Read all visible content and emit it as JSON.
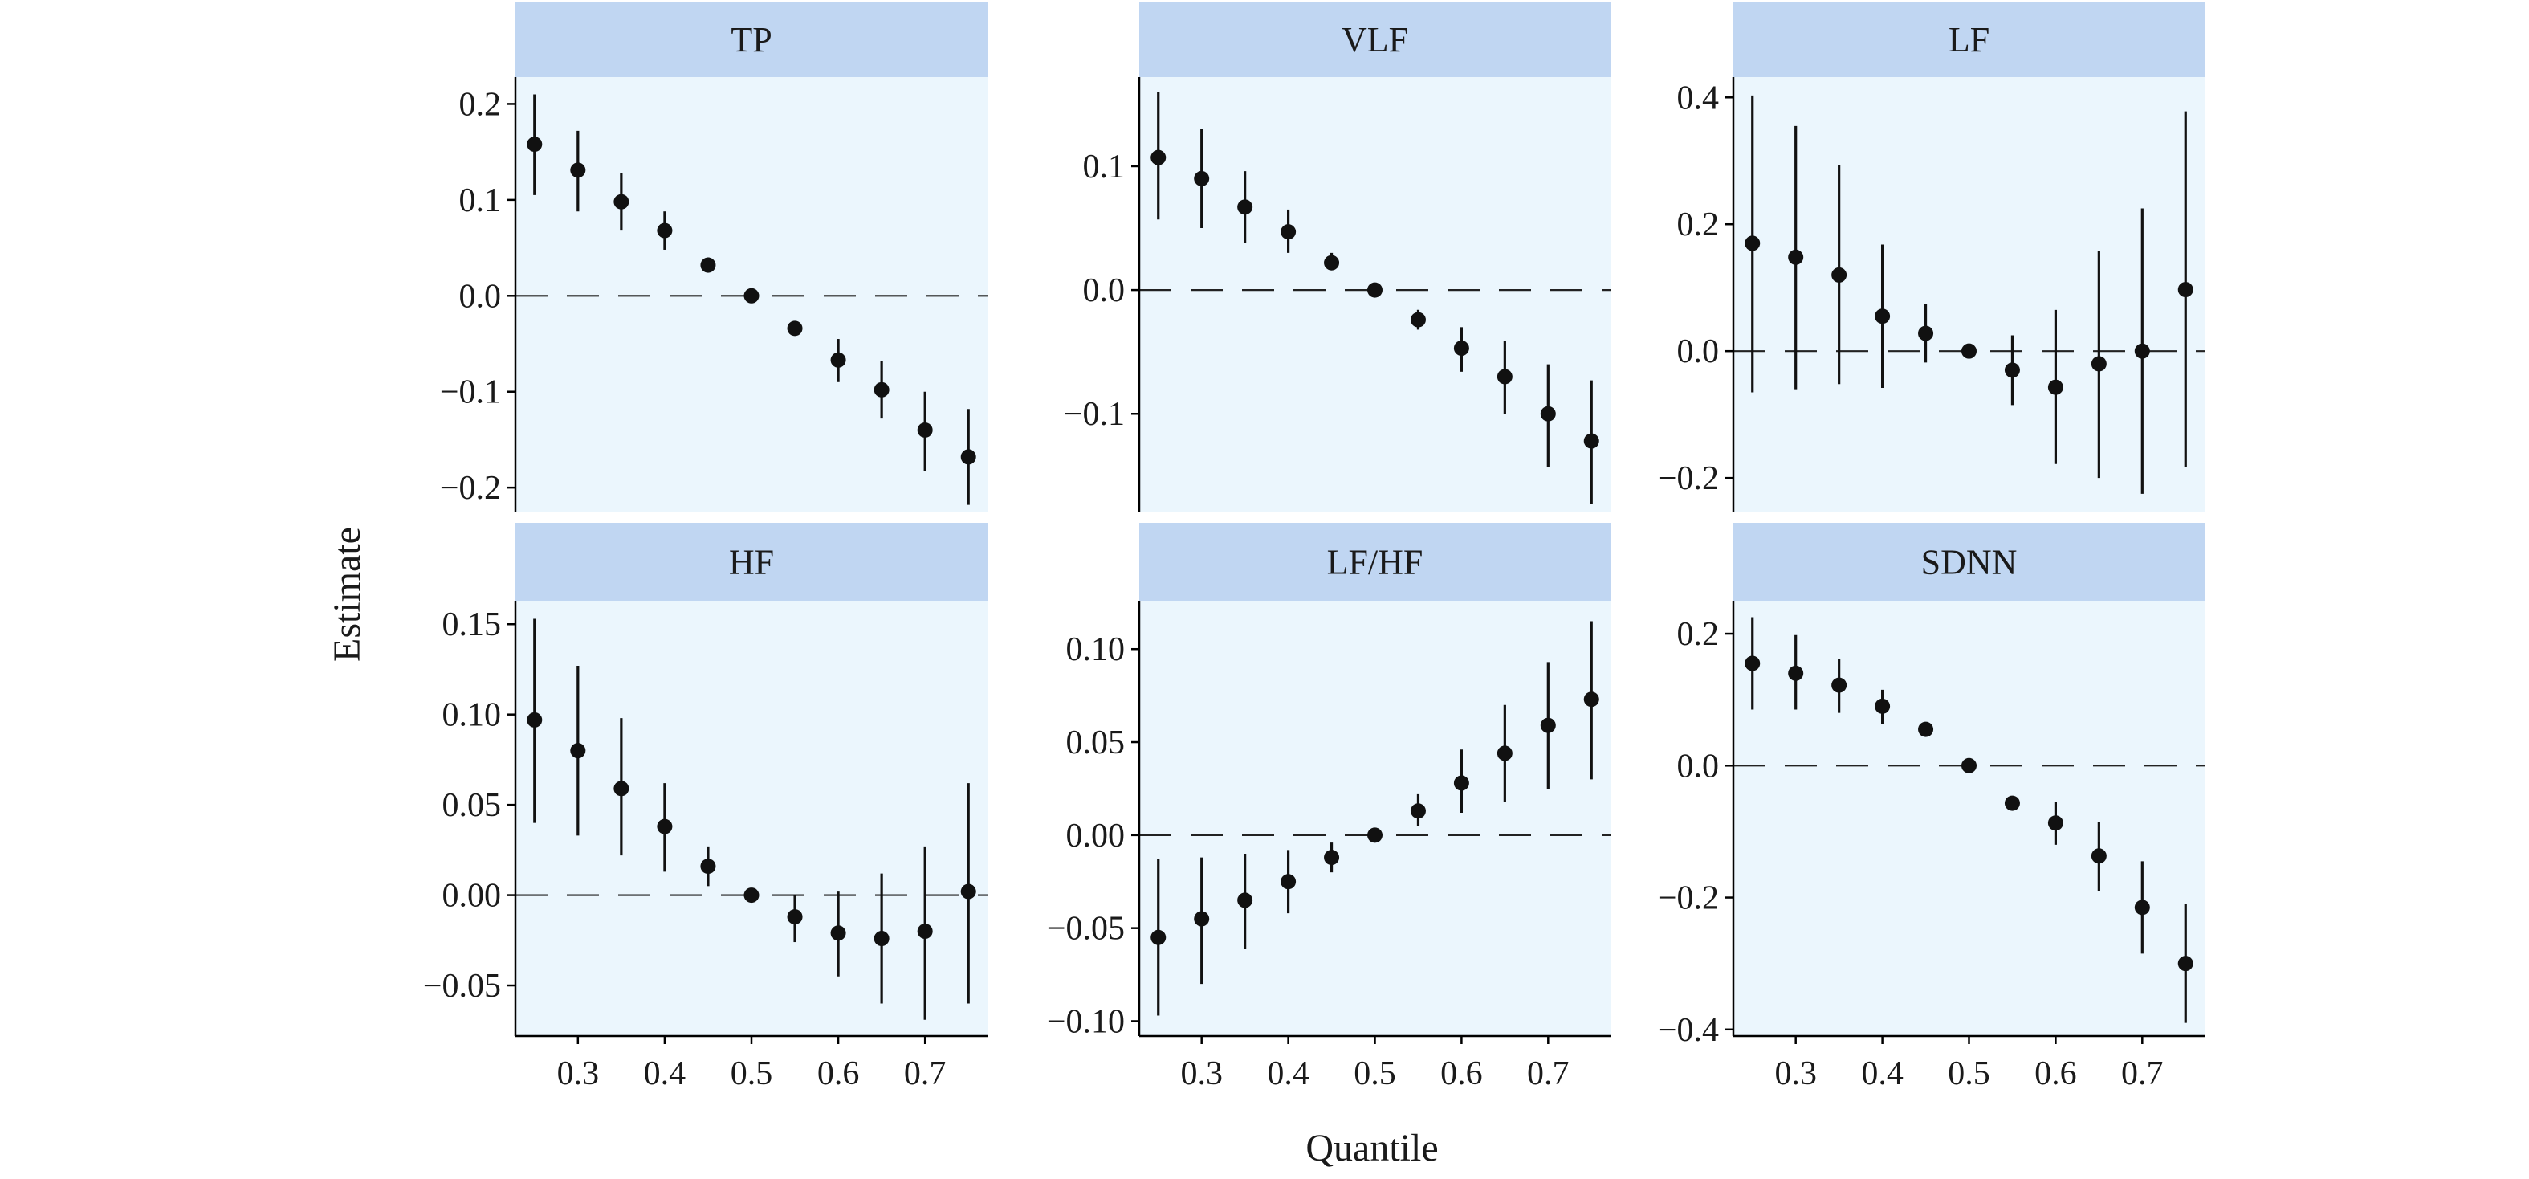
{
  "colors": {
    "panel_bg": "#ebf6fd",
    "strip_bg": "#c0d6f2",
    "point": "#111111",
    "reference_line": "#222222"
  },
  "figure": {
    "ylabel": "Estimate",
    "xlabel": "Quantile"
  },
  "chart_data": [
    {
      "type": "scatter",
      "title": "TP",
      "x": [
        0.25,
        0.3,
        0.35,
        0.4,
        0.45,
        0.5,
        0.55,
        0.6,
        0.65,
        0.7,
        0.75
      ],
      "values": [
        0.158,
        0.131,
        0.098,
        0.068,
        0.032,
        0.0,
        -0.034,
        -0.067,
        -0.098,
        -0.14,
        -0.168
      ],
      "lower": [
        0.105,
        0.088,
        0.068,
        0.048,
        0.025,
        0.0,
        -0.04,
        -0.09,
        -0.128,
        -0.183,
        -0.218
      ],
      "upper": [
        0.21,
        0.172,
        0.128,
        0.088,
        0.04,
        0.0,
        -0.028,
        -0.045,
        -0.068,
        -0.1,
        -0.118
      ],
      "ylim": [
        -0.225,
        0.228
      ],
      "yticks": [
        0.2,
        0.1,
        0.0,
        -0.1,
        -0.2
      ],
      "ytick_labels": [
        "0.2",
        "0.1",
        "0.0",
        "−0.1",
        "−0.2"
      ],
      "xticks": [
        0.3,
        0.4,
        0.5,
        0.6,
        0.7
      ],
      "xtick_labels": [
        "0.3",
        "0.4",
        "0.5",
        "0.6",
        "0.7"
      ],
      "reference_line": 0
    },
    {
      "type": "scatter",
      "title": "VLF",
      "x": [
        0.25,
        0.3,
        0.35,
        0.4,
        0.45,
        0.5,
        0.55,
        0.6,
        0.65,
        0.7,
        0.75
      ],
      "values": [
        0.107,
        0.09,
        0.067,
        0.047,
        0.022,
        0.0,
        -0.024,
        -0.047,
        -0.07,
        -0.1,
        -0.122
      ],
      "lower": [
        0.057,
        0.05,
        0.038,
        0.03,
        0.016,
        0.0,
        -0.032,
        -0.066,
        -0.1,
        -0.143,
        -0.173
      ],
      "upper": [
        0.16,
        0.13,
        0.096,
        0.065,
        0.03,
        0.0,
        -0.016,
        -0.03,
        -0.041,
        -0.06,
        -0.073
      ],
      "ylim": [
        -0.179,
        0.172
      ],
      "yticks": [
        0.1,
        0.0,
        -0.1
      ],
      "ytick_labels": [
        "0.1",
        "0.0",
        "−0.1"
      ],
      "xticks": [
        0.3,
        0.4,
        0.5,
        0.6,
        0.7
      ],
      "xtick_labels": [
        "0.3",
        "0.4",
        "0.5",
        "0.6",
        "0.7"
      ],
      "reference_line": 0
    },
    {
      "type": "scatter",
      "title": "LF",
      "x": [
        0.25,
        0.3,
        0.35,
        0.4,
        0.45,
        0.5,
        0.55,
        0.6,
        0.65,
        0.7,
        0.75
      ],
      "values": [
        0.17,
        0.148,
        0.12,
        0.055,
        0.028,
        0.0,
        -0.03,
        -0.057,
        -0.02,
        0.0,
        0.097
      ],
      "lower": [
        -0.065,
        -0.06,
        -0.052,
        -0.058,
        -0.018,
        0.0,
        -0.085,
        -0.178,
        -0.2,
        -0.225,
        -0.183
      ],
      "upper": [
        0.403,
        0.355,
        0.293,
        0.168,
        0.075,
        0.0,
        0.025,
        0.065,
        0.158,
        0.225,
        0.378
      ],
      "ylim": [
        -0.253,
        0.432
      ],
      "yticks": [
        0.4,
        0.2,
        0.0,
        -0.2
      ],
      "ytick_labels": [
        "0.4",
        "0.2",
        "0.0",
        "−0.2"
      ],
      "xticks": [
        0.3,
        0.4,
        0.5,
        0.6,
        0.7
      ],
      "xtick_labels": [
        "0.3",
        "0.4",
        "0.5",
        "0.6",
        "0.7"
      ],
      "reference_line": 0
    },
    {
      "type": "scatter",
      "title": "HF",
      "x": [
        0.25,
        0.3,
        0.35,
        0.4,
        0.45,
        0.5,
        0.55,
        0.6,
        0.65,
        0.7,
        0.75
      ],
      "values": [
        0.097,
        0.08,
        0.059,
        0.038,
        0.016,
        0.0,
        -0.012,
        -0.021,
        -0.024,
        -0.02,
        0.002
      ],
      "lower": [
        0.04,
        0.033,
        0.022,
        0.013,
        0.005,
        0.0,
        -0.026,
        -0.045,
        -0.06,
        -0.069,
        -0.06
      ],
      "upper": [
        0.153,
        0.127,
        0.098,
        0.062,
        0.027,
        0.0,
        0.0,
        0.002,
        0.012,
        0.027,
        0.062
      ],
      "ylim": [
        -0.078,
        0.163
      ],
      "yticks": [
        0.15,
        0.1,
        0.05,
        0.0,
        -0.05
      ],
      "ytick_labels": [
        "0.15",
        "0.10",
        "0.05",
        "0.00",
        "−0.05"
      ],
      "xticks": [
        0.3,
        0.4,
        0.5,
        0.6,
        0.7
      ],
      "xtick_labels": [
        "0.3",
        "0.4",
        "0.5",
        "0.6",
        "0.7"
      ],
      "reference_line": 0
    },
    {
      "type": "scatter",
      "title": "LF/HF",
      "x": [
        0.25,
        0.3,
        0.35,
        0.4,
        0.45,
        0.5,
        0.55,
        0.6,
        0.65,
        0.7,
        0.75
      ],
      "values": [
        -0.055,
        -0.045,
        -0.035,
        -0.025,
        -0.012,
        0.0,
        0.013,
        0.028,
        0.044,
        0.059,
        0.073
      ],
      "lower": [
        -0.097,
        -0.08,
        -0.061,
        -0.042,
        -0.02,
        0.0,
        0.005,
        0.012,
        0.018,
        0.025,
        0.03
      ],
      "upper": [
        -0.013,
        -0.012,
        -0.01,
        -0.008,
        -0.004,
        0.0,
        0.022,
        0.046,
        0.07,
        0.093,
        0.115
      ],
      "ylim": [
        -0.108,
        0.126
      ],
      "yticks": [
        0.1,
        0.05,
        0.0,
        -0.05,
        -0.1
      ],
      "ytick_labels": [
        "0.10",
        "0.05",
        "0.00",
        "−0.05",
        "−0.10"
      ],
      "xticks": [
        0.3,
        0.4,
        0.5,
        0.6,
        0.7
      ],
      "xtick_labels": [
        "0.3",
        "0.4",
        "0.5",
        "0.6",
        "0.7"
      ],
      "reference_line": 0
    },
    {
      "type": "scatter",
      "title": "SDNN",
      "x": [
        0.25,
        0.3,
        0.35,
        0.4,
        0.45,
        0.5,
        0.55,
        0.6,
        0.65,
        0.7,
        0.75
      ],
      "values": [
        0.155,
        0.14,
        0.122,
        0.09,
        0.055,
        0.0,
        -0.057,
        -0.087,
        -0.137,
        -0.215,
        -0.3
      ],
      "lower": [
        0.085,
        0.085,
        0.08,
        0.063,
        0.045,
        0.0,
        -0.068,
        -0.12,
        -0.19,
        -0.285,
        -0.39
      ],
      "upper": [
        0.225,
        0.198,
        0.162,
        0.115,
        0.065,
        0.0,
        -0.046,
        -0.055,
        -0.085,
        -0.145,
        -0.21
      ],
      "ylim": [
        -0.41,
        0.25
      ],
      "yticks": [
        0.2,
        0.0,
        -0.2,
        -0.4
      ],
      "ytick_labels": [
        "0.2",
        "0.0",
        "−0.2",
        "−0.4"
      ],
      "xticks": [
        0.3,
        0.4,
        0.5,
        0.6,
        0.7
      ],
      "xtick_labels": [
        "0.3",
        "0.4",
        "0.5",
        "0.6",
        "0.7"
      ],
      "reference_line": 0
    }
  ]
}
